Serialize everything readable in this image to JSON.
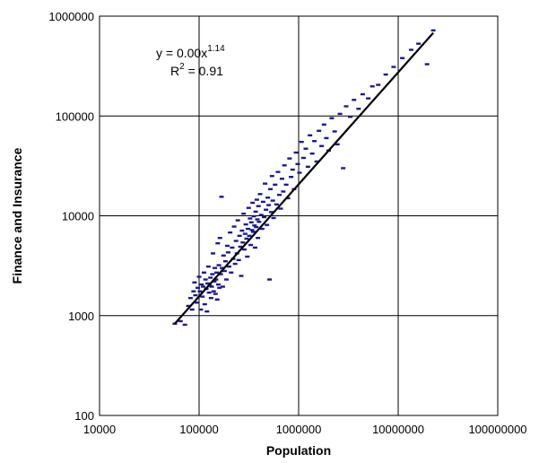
{
  "chart_data": {
    "type": "scatter",
    "title": "",
    "xlabel": "Population",
    "ylabel": "Finance and Insurance",
    "x_scale": "log",
    "y_scale": "log",
    "xlim": [
      10000,
      100000000
    ],
    "ylim": [
      100,
      1000000
    ],
    "x_ticks": [
      "10000",
      "100000",
      "1000000",
      "10000000",
      "100000000"
    ],
    "y_ticks": [
      "100",
      "1000",
      "10000",
      "100000",
      "1000000"
    ],
    "grid": true,
    "legend": "none",
    "point_color": "#1a1a8c",
    "line_color": "#000000",
    "annotation": {
      "eq_prefix": "y = 0.00x",
      "eq_exponent": "1.14",
      "r2_prefix": "R",
      "r2_exponent": "2",
      "r2_suffix": " = 0.91"
    },
    "series": [
      {
        "type": "scatter",
        "points": [
          [
            57000,
            830
          ],
          [
            65000,
            880
          ],
          [
            72000,
            810
          ],
          [
            78000,
            1250
          ],
          [
            82000,
            1500
          ],
          [
            85000,
            1150
          ],
          [
            88000,
            1750
          ],
          [
            90000,
            2150
          ],
          [
            92000,
            1600
          ],
          [
            95000,
            1350
          ],
          [
            97000,
            1900
          ],
          [
            100000,
            2450
          ],
          [
            102000,
            1750
          ],
          [
            104000,
            1150
          ],
          [
            106000,
            2050
          ],
          [
            108000,
            1550
          ],
          [
            110000,
            1950
          ],
          [
            112000,
            2700
          ],
          [
            114000,
            1300
          ],
          [
            116000,
            2300
          ],
          [
            118000,
            1850
          ],
          [
            120000,
            1100
          ],
          [
            122000,
            2100
          ],
          [
            124000,
            3100
          ],
          [
            126000,
            1700
          ],
          [
            128000,
            2000
          ],
          [
            130000,
            2400
          ],
          [
            132000,
            1500
          ],
          [
            134000,
            1950
          ],
          [
            136000,
            2600
          ],
          [
            138000,
            4200
          ],
          [
            140000,
            1750
          ],
          [
            142000,
            2200
          ],
          [
            144000,
            3000
          ],
          [
            146000,
            1650
          ],
          [
            148000,
            2300
          ],
          [
            150000,
            2700
          ],
          [
            152000,
            1450
          ],
          [
            154000,
            5300
          ],
          [
            156000,
            2050
          ],
          [
            158000,
            3200
          ],
          [
            160000,
            1900
          ],
          [
            162000,
            6000
          ],
          [
            165000,
            2600
          ],
          [
            168000,
            15500
          ],
          [
            170000,
            3000
          ],
          [
            173000,
            1950
          ],
          [
            176000,
            4000
          ],
          [
            180000,
            2800
          ],
          [
            184000,
            3500
          ],
          [
            188000,
            2300
          ],
          [
            192000,
            5000
          ],
          [
            196000,
            4300
          ],
          [
            200000,
            3100
          ],
          [
            205000,
            6800
          ],
          [
            210000,
            2700
          ],
          [
            215000,
            4800
          ],
          [
            220000,
            3700
          ],
          [
            225000,
            7800
          ],
          [
            230000,
            3300
          ],
          [
            235000,
            5600
          ],
          [
            240000,
            4200
          ],
          [
            245000,
            9000
          ],
          [
            250000,
            3600
          ],
          [
            255000,
            6300
          ],
          [
            260000,
            4900
          ],
          [
            265000,
            2500
          ],
          [
            270000,
            7100
          ],
          [
            275000,
            5400
          ],
          [
            280000,
            10500
          ],
          [
            285000,
            4600
          ],
          [
            290000,
            6600
          ],
          [
            295000,
            8200
          ],
          [
            300000,
            5900
          ],
          [
            305000,
            3900
          ],
          [
            310000,
            7400
          ],
          [
            315000,
            12000
          ],
          [
            320000,
            6300
          ],
          [
            325000,
            9400
          ],
          [
            330000,
            5100
          ],
          [
            335000,
            8600
          ],
          [
            340000,
            7200
          ],
          [
            345000,
            13500
          ],
          [
            350000,
            6900
          ],
          [
            355000,
            9900
          ],
          [
            360000,
            8000
          ],
          [
            365000,
            4800
          ],
          [
            370000,
            11000
          ],
          [
            375000,
            7700
          ],
          [
            380000,
            14500
          ],
          [
            385000,
            9200
          ],
          [
            390000,
            6000
          ],
          [
            395000,
            12500
          ],
          [
            400000,
            8700
          ],
          [
            410000,
            16500
          ],
          [
            420000,
            10200
          ],
          [
            430000,
            7400
          ],
          [
            440000,
            13800
          ],
          [
            450000,
            9700
          ],
          [
            460000,
            21000
          ],
          [
            470000,
            11500
          ],
          [
            480000,
            8100
          ],
          [
            490000,
            15200
          ],
          [
            500000,
            12800
          ],
          [
            510000,
            2300
          ],
          [
            520000,
            18500
          ],
          [
            530000,
            10900
          ],
          [
            540000,
            25000
          ],
          [
            550000,
            14200
          ],
          [
            560000,
            9500
          ],
          [
            580000,
            20500
          ],
          [
            600000,
            13000
          ],
          [
            620000,
            27500
          ],
          [
            640000,
            16200
          ],
          [
            660000,
            11800
          ],
          [
            680000,
            23500
          ],
          [
            700000,
            17500
          ],
          [
            720000,
            32000
          ],
          [
            750000,
            20500
          ],
          [
            780000,
            15000
          ],
          [
            810000,
            37500
          ],
          [
            840000,
            24500
          ],
          [
            870000,
            29000
          ],
          [
            900000,
            18500
          ],
          [
            940000,
            43000
          ],
          [
            980000,
            33000
          ],
          [
            1020000,
            27000
          ],
          [
            1070000,
            55000
          ],
          [
            1120000,
            38000
          ],
          [
            1180000,
            47000
          ],
          [
            1240000,
            31000
          ],
          [
            1300000,
            64000
          ],
          [
            1370000,
            42000
          ],
          [
            1440000,
            56000
          ],
          [
            1520000,
            35000
          ],
          [
            1600000,
            71000
          ],
          [
            1700000,
            50000
          ],
          [
            1800000,
            82000
          ],
          [
            1900000,
            60000
          ],
          [
            2000000,
            45000
          ],
          [
            2150000,
            95000
          ],
          [
            2300000,
            70000
          ],
          [
            2450000,
            52000
          ],
          [
            2600000,
            105000
          ],
          [
            2800000,
            30000
          ],
          [
            3000000,
            125000
          ],
          [
            3300000,
            98000
          ],
          [
            3600000,
            145000
          ],
          [
            4000000,
            118000
          ],
          [
            4400000,
            165000
          ],
          [
            5000000,
            150000
          ],
          [
            5500000,
            198000
          ],
          [
            6300000,
            205000
          ],
          [
            7500000,
            260000
          ],
          [
            9000000,
            310000
          ],
          [
            11000000,
            380000
          ],
          [
            13500000,
            460000
          ],
          [
            16000000,
            530000
          ],
          [
            19500000,
            330000
          ],
          [
            22500000,
            720000
          ]
        ]
      },
      {
        "type": "line",
        "name": "",
        "points": [
          [
            57000,
            830
          ],
          [
            22500000,
            680000
          ]
        ]
      }
    ]
  }
}
